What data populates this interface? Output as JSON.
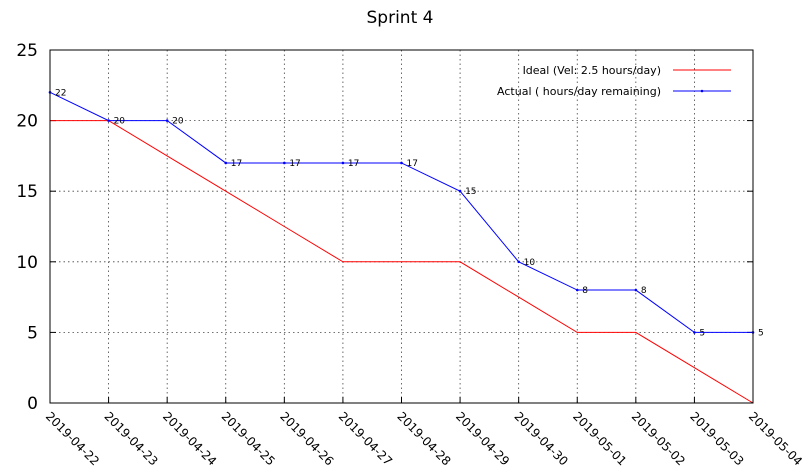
{
  "chart_data": {
    "type": "line",
    "title": "Sprint 4",
    "x": [
      "2019-04-22",
      "2019-04-23",
      "2019-04-24",
      "2019-04-25",
      "2019-04-26",
      "2019-04-27",
      "2019-04-28",
      "2019-04-29",
      "2019-04-30",
      "2019-05-01",
      "2019-05-02",
      "2019-05-03",
      "2019-05-04"
    ],
    "ylim": [
      0,
      25
    ],
    "yticks": [
      0,
      5,
      10,
      15,
      20,
      25
    ],
    "grid": true,
    "legend_position": "top-right",
    "series": [
      {
        "name": "Ideal (Vel: 2.5 hours/day)",
        "color": "#ff0000",
        "values": [
          20,
          20,
          17.5,
          15,
          12.5,
          10,
          10,
          10,
          7.5,
          5,
          5,
          2.5,
          0
        ],
        "show_labels": false
      },
      {
        "name": "Actual ( hours/day remaining)",
        "color": "#0000ff",
        "values": [
          22,
          20,
          20,
          17,
          17,
          17,
          17,
          15,
          10,
          8,
          8,
          5,
          5
        ],
        "labels": [
          "22",
          "20",
          "20",
          "17",
          "17",
          "17",
          "17",
          "15",
          "10",
          "8",
          "8",
          "5",
          "5"
        ],
        "show_labels": true
      }
    ]
  }
}
